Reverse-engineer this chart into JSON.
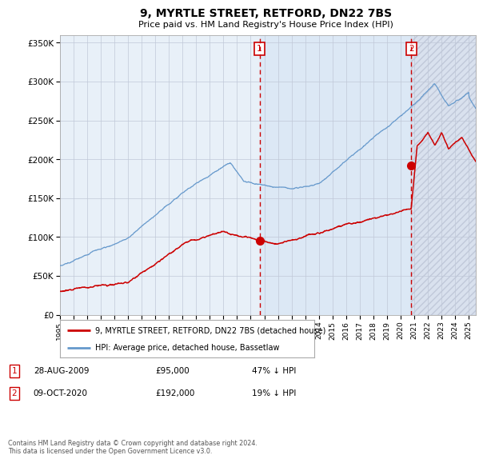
{
  "title": "9, MYRTLE STREET, RETFORD, DN22 7BS",
  "subtitle": "Price paid vs. HM Land Registry's House Price Index (HPI)",
  "footer": "Contains HM Land Registry data © Crown copyright and database right 2024.\nThis data is licensed under the Open Government Licence v3.0.",
  "legend_red": "9, MYRTLE STREET, RETFORD, DN22 7BS (detached house)",
  "legend_blue": "HPI: Average price, detached house, Bassetlaw",
  "sale1_date_label": "28-AUG-2009",
  "sale1_year": 2009.65,
  "sale1_price": 95000,
  "sale1_hpi_pct": "47% ↓ HPI",
  "sale2_date_label": "09-OCT-2020",
  "sale2_year": 2020.77,
  "sale2_price": 192000,
  "sale2_hpi_pct": "19% ↓ HPI",
  "ylim": [
    0,
    360000
  ],
  "xlim_start": 1995,
  "xlim_end": 2025.5,
  "background_color": "#ffffff",
  "plot_bg_color": "#e8f0f8",
  "shaded_region_color": "#dce8f5",
  "grid_color": "#c0c8d8",
  "red_line_color": "#cc0000",
  "blue_line_color": "#6699cc",
  "dashed_line_color": "#cc0000",
  "marker_color": "#cc0000",
  "hatch_color": "#b0b8c8"
}
